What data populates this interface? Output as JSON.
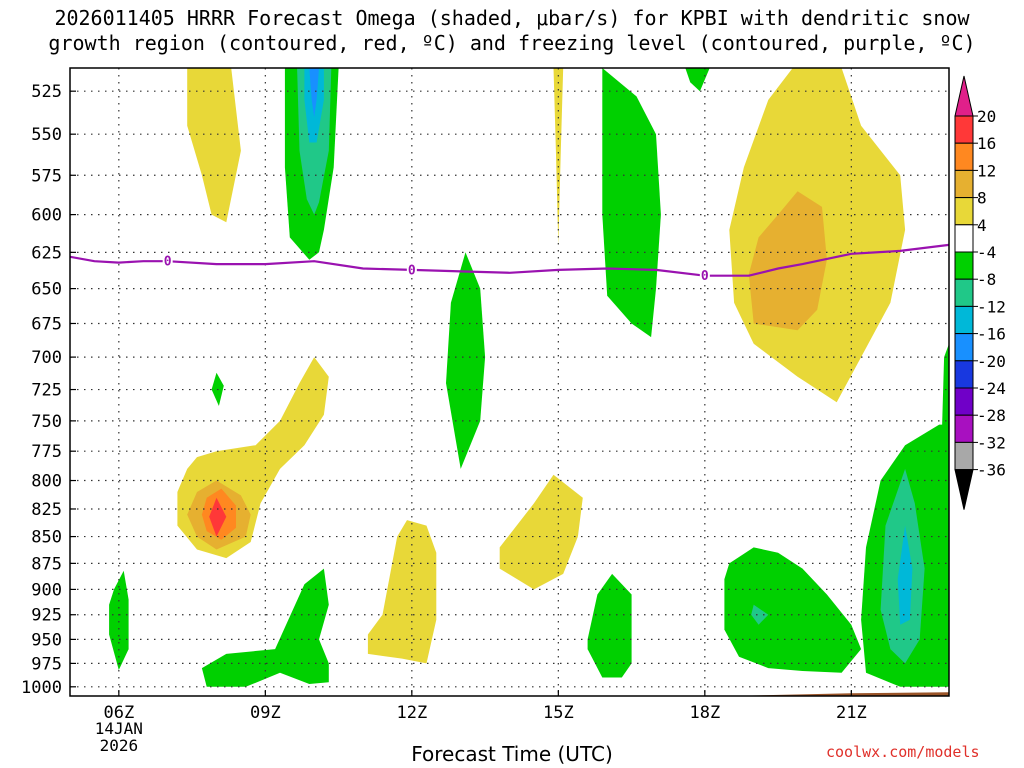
{
  "chart_data": {
    "type": "contour",
    "title_line1": "2026011405 HRRR Forecast Omega (shaded, μbar/s) for KPBI with dendritic snow",
    "title_line2": "growth region (contoured, red, ºC) and freezing level (contoured, purple, ºC)",
    "xlabel": "Forecast Time (UTC)",
    "credit": "coolwx.com/models",
    "x_range_hours": [
      5,
      23
    ],
    "y_range_mb": [
      1010,
      512
    ],
    "x_ticks": [
      {
        "hour": 6,
        "label": "06Z"
      },
      {
        "hour": 9,
        "label": "09Z"
      },
      {
        "hour": 12,
        "label": "12Z"
      },
      {
        "hour": 15,
        "label": "15Z"
      },
      {
        "hour": 18,
        "label": "18Z"
      },
      {
        "hour": 21,
        "label": "21Z"
      }
    ],
    "date_label": [
      "14JAN",
      "2026"
    ],
    "y_ticks": [
      525,
      550,
      575,
      600,
      625,
      650,
      675,
      700,
      725,
      750,
      775,
      800,
      825,
      850,
      875,
      900,
      925,
      950,
      975,
      1000
    ],
    "colorbar": {
      "labels": [
        "20",
        "16",
        "12",
        "8",
        "4",
        "-4",
        "-8",
        "-12",
        "-16",
        "-20",
        "-24",
        "-28",
        "-32",
        "-36"
      ],
      "colors": [
        "#ff3838",
        "#ff8820",
        "#e6b030",
        "#e8d838",
        "#ffffff",
        "#00d000",
        "#20c888",
        "#00b8d8",
        "#1890ff",
        "#1838e0",
        "#7000c8",
        "#a810c0",
        "#a8a8a8"
      ],
      "top_cap": "#e0208a",
      "bottom_cap": "#000000"
    },
    "freezing_level": {
      "label": "0",
      "color": "#9a12b0",
      "points": [
        [
          5.0,
          628
        ],
        [
          5.5,
          631
        ],
        [
          6.0,
          632
        ],
        [
          6.5,
          631
        ],
        [
          7.0,
          631
        ],
        [
          8.0,
          633
        ],
        [
          9.0,
          633
        ],
        [
          10.0,
          631
        ],
        [
          11.0,
          636
        ],
        [
          12.0,
          637
        ],
        [
          13.0,
          638
        ],
        [
          14.0,
          639
        ],
        [
          15.0,
          637
        ],
        [
          16.0,
          636
        ],
        [
          17.0,
          637
        ],
        [
          18.0,
          641
        ],
        [
          18.9,
          641
        ],
        [
          19.5,
          636
        ],
        [
          20.0,
          633
        ],
        [
          21.0,
          626
        ],
        [
          22.0,
          624
        ],
        [
          23.0,
          620
        ]
      ],
      "label_hours": [
        7.0,
        12.0,
        18.0
      ]
    },
    "regions": [
      {
        "level": 4,
        "color": "#e8d838",
        "points": [
          [
            7.4,
            512
          ],
          [
            8.3,
            512
          ],
          [
            8.5,
            560
          ],
          [
            8.2,
            605
          ],
          [
            7.9,
            600
          ],
          [
            7.7,
            575
          ],
          [
            7.4,
            545
          ]
        ]
      },
      {
        "level": -4,
        "color": "#00d000",
        "points": [
          [
            9.4,
            512
          ],
          [
            10.5,
            512
          ],
          [
            10.4,
            570
          ],
          [
            10.2,
            610
          ],
          [
            10.1,
            625
          ],
          [
            9.9,
            630
          ],
          [
            9.5,
            615
          ],
          [
            9.4,
            570
          ]
        ]
      },
      {
        "level": -8,
        "color": "#20c888",
        "points": [
          [
            9.65,
            512
          ],
          [
            10.35,
            512
          ],
          [
            10.3,
            560
          ],
          [
            10.1,
            592
          ],
          [
            10.0,
            600
          ],
          [
            9.85,
            590
          ],
          [
            9.7,
            560
          ]
        ]
      },
      {
        "level": -12,
        "color": "#00b8d8",
        "points": [
          [
            9.8,
            512
          ],
          [
            10.2,
            512
          ],
          [
            10.2,
            530
          ],
          [
            10.05,
            555
          ],
          [
            9.9,
            555
          ],
          [
            9.8,
            530
          ]
        ]
      },
      {
        "level": -16,
        "color": "#1890ff",
        "points": [
          [
            9.9,
            512
          ],
          [
            10.1,
            512
          ],
          [
            10.05,
            530
          ],
          [
            10.0,
            540
          ],
          [
            9.95,
            530
          ]
        ]
      },
      {
        "level": 4,
        "color": "#e8d838",
        "points": [
          [
            14.9,
            512
          ],
          [
            15.1,
            512
          ],
          [
            15.05,
            560
          ],
          [
            15.0,
            620
          ],
          [
            14.95,
            560
          ]
        ]
      },
      {
        "level": -4,
        "color": "#00d000",
        "points": [
          [
            17.6,
            512
          ],
          [
            18.1,
            512
          ],
          [
            17.9,
            525
          ],
          [
            17.7,
            520
          ]
        ]
      },
      {
        "level": -4,
        "color": "#00d000",
        "points": [
          [
            15.9,
            512
          ],
          [
            16.6,
            528
          ],
          [
            17.0,
            550
          ],
          [
            17.1,
            600
          ],
          [
            17.0,
            650
          ],
          [
            16.9,
            685
          ],
          [
            16.5,
            675
          ],
          [
            16.0,
            655
          ],
          [
            15.9,
            600
          ]
        ]
      },
      {
        "level": 4,
        "color": "#e8d838",
        "points": [
          [
            19.8,
            512
          ],
          [
            20.8,
            512
          ],
          [
            21.2,
            545
          ],
          [
            22.0,
            575
          ],
          [
            22.1,
            610
          ],
          [
            21.8,
            660
          ],
          [
            21.2,
            700
          ],
          [
            20.7,
            735
          ],
          [
            19.9,
            715
          ],
          [
            19.0,
            690
          ],
          [
            18.6,
            660
          ],
          [
            18.5,
            610
          ],
          [
            18.8,
            570
          ],
          [
            19.3,
            530
          ]
        ]
      },
      {
        "level": 8,
        "color": "#e6b030",
        "points": [
          [
            19.9,
            585
          ],
          [
            20.4,
            595
          ],
          [
            20.5,
            630
          ],
          [
            20.3,
            665
          ],
          [
            19.9,
            680
          ],
          [
            19.0,
            675
          ],
          [
            18.9,
            640
          ],
          [
            19.1,
            615
          ],
          [
            19.5,
            600
          ]
        ]
      },
      {
        "level": -4,
        "color": "#00d000",
        "points": [
          [
            13.1,
            625
          ],
          [
            13.4,
            650
          ],
          [
            13.5,
            700
          ],
          [
            13.4,
            750
          ],
          [
            13.0,
            790
          ],
          [
            12.7,
            720
          ],
          [
            12.8,
            660
          ]
        ]
      },
      {
        "level": 4,
        "color": "#e8d838",
        "points": [
          [
            7.4,
            790
          ],
          [
            7.6,
            780
          ],
          [
            8.0,
            775
          ],
          [
            8.8,
            770
          ],
          [
            9.3,
            750
          ],
          [
            9.7,
            720
          ],
          [
            10.0,
            700
          ],
          [
            10.3,
            715
          ],
          [
            10.2,
            745
          ],
          [
            9.8,
            770
          ],
          [
            9.3,
            790
          ],
          [
            8.9,
            820
          ],
          [
            8.7,
            855
          ],
          [
            8.2,
            870
          ],
          [
            7.6,
            862
          ],
          [
            7.2,
            840
          ],
          [
            7.2,
            810
          ]
        ]
      },
      {
        "level": 8,
        "color": "#e6b030",
        "points": [
          [
            7.6,
            810
          ],
          [
            8.0,
            800
          ],
          [
            8.5,
            813
          ],
          [
            8.7,
            830
          ],
          [
            8.6,
            850
          ],
          [
            8.0,
            862
          ],
          [
            7.6,
            850
          ],
          [
            7.4,
            830
          ]
        ]
      },
      {
        "level": 12,
        "color": "#ff8820",
        "points": [
          [
            7.8,
            815
          ],
          [
            8.1,
            807
          ],
          [
            8.4,
            822
          ],
          [
            8.4,
            842
          ],
          [
            8.1,
            853
          ],
          [
            7.8,
            845
          ],
          [
            7.7,
            830
          ]
        ]
      },
      {
        "level": 16,
        "color": "#ff3838",
        "points": [
          [
            8.0,
            815
          ],
          [
            8.2,
            832
          ],
          [
            8.0,
            850
          ],
          [
            7.85,
            832
          ]
        ]
      },
      {
        "level": -4,
        "color": "#00d000",
        "points": [
          [
            8.0,
            712
          ],
          [
            8.15,
            722
          ],
          [
            8.05,
            738
          ],
          [
            7.9,
            725
          ]
        ]
      },
      {
        "level": -4,
        "color": "#00d000",
        "points": [
          [
            5.9,
            900
          ],
          [
            6.1,
            882
          ],
          [
            6.2,
            910
          ],
          [
            6.2,
            960
          ],
          [
            6.0,
            982
          ],
          [
            5.8,
            945
          ],
          [
            5.8,
            915
          ]
        ]
      },
      {
        "level": -4,
        "color": "#00d000",
        "points": [
          [
            9.2,
            960
          ],
          [
            9.8,
            895
          ],
          [
            10.2,
            880
          ],
          [
            10.3,
            915
          ],
          [
            10.1,
            950
          ],
          [
            10.3,
            975
          ],
          [
            10.3,
            995
          ],
          [
            9.9,
            997
          ],
          [
            9.3,
            985
          ],
          [
            8.6,
            1000
          ],
          [
            7.8,
            1000
          ],
          [
            7.7,
            980
          ],
          [
            8.2,
            965
          ]
        ]
      },
      {
        "level": 4,
        "color": "#e8d838",
        "points": [
          [
            11.7,
            850
          ],
          [
            11.9,
            835
          ],
          [
            12.3,
            840
          ],
          [
            12.5,
            865
          ],
          [
            12.5,
            930
          ],
          [
            12.3,
            975
          ],
          [
            11.8,
            970
          ],
          [
            11.1,
            965
          ],
          [
            11.1,
            945
          ],
          [
            11.4,
            925
          ]
        ]
      },
      {
        "level": 4,
        "color": "#e8d838",
        "points": [
          [
            13.8,
            860
          ],
          [
            14.5,
            820
          ],
          [
            14.9,
            795
          ],
          [
            15.5,
            815
          ],
          [
            15.4,
            850
          ],
          [
            15.1,
            885
          ],
          [
            14.5,
            900
          ],
          [
            13.8,
            880
          ]
        ]
      },
      {
        "level": -4,
        "color": "#00d000",
        "points": [
          [
            15.6,
            950
          ],
          [
            15.8,
            905
          ],
          [
            16.1,
            885
          ],
          [
            16.5,
            905
          ],
          [
            16.5,
            975
          ],
          [
            16.3,
            990
          ],
          [
            15.9,
            990
          ],
          [
            15.6,
            960
          ]
        ]
      },
      {
        "level": -4,
        "color": "#00d000",
        "points": [
          [
            18.5,
            875
          ],
          [
            19.0,
            860
          ],
          [
            19.5,
            865
          ],
          [
            20.0,
            880
          ],
          [
            20.5,
            905
          ],
          [
            21.0,
            935
          ],
          [
            21.2,
            960
          ],
          [
            20.8,
            985
          ],
          [
            20.0,
            983
          ],
          [
            19.3,
            980
          ],
          [
            18.7,
            968
          ],
          [
            18.4,
            940
          ],
          [
            18.4,
            890
          ]
        ]
      },
      {
        "level": -8,
        "color": "#20c888",
        "points": [
          [
            19.0,
            915
          ],
          [
            19.3,
            925
          ],
          [
            19.1,
            935
          ],
          [
            18.95,
            925
          ]
        ]
      },
      {
        "level": -4,
        "color": "#00d000",
        "points": [
          [
            22.1,
            770
          ],
          [
            22.8,
            753
          ],
          [
            23.0,
            753
          ],
          [
            23.0,
            1000
          ],
          [
            22.0,
            1000
          ],
          [
            21.3,
            985
          ],
          [
            21.2,
            930
          ],
          [
            21.3,
            860
          ],
          [
            21.6,
            800
          ]
        ]
      },
      {
        "level": -8,
        "color": "#20c888",
        "points": [
          [
            22.1,
            790
          ],
          [
            22.3,
            820
          ],
          [
            22.5,
            880
          ],
          [
            22.4,
            950
          ],
          [
            22.1,
            975
          ],
          [
            21.8,
            960
          ],
          [
            21.6,
            920
          ],
          [
            21.7,
            840
          ]
        ]
      },
      {
        "level": -12,
        "color": "#00b8d8",
        "points": [
          [
            22.1,
            840
          ],
          [
            22.25,
            880
          ],
          [
            22.2,
            930
          ],
          [
            22.0,
            935
          ],
          [
            21.95,
            890
          ]
        ]
      },
      {
        "level": -4,
        "color": "#00d000",
        "points": [
          [
            22.9,
            700
          ],
          [
            23.0,
            690
          ],
          [
            23.0,
            760
          ],
          [
            22.85,
            765
          ]
        ]
      }
    ],
    "ground": {
      "color": "#9a5428",
      "points": [
        [
          5.0,
          1012
        ],
        [
          8.0,
          1012
        ],
        [
          12.0,
          1011
        ],
        [
          15.0,
          1011
        ],
        [
          17.0,
          1011
        ],
        [
          18.5,
          1010
        ],
        [
          21.0,
          1007
        ],
        [
          23.0,
          1006
        ]
      ]
    }
  }
}
